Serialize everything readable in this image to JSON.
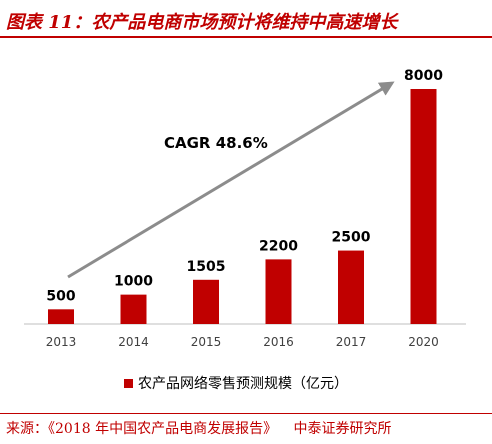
{
  "title": "图表 11：农产品电商市场预计将维持中高速增长",
  "source": {
    "text": "来源：《2018 年中国农产品电商发展报告》",
    "org": "中泰证券研究所"
  },
  "colors": {
    "accent": "#c00000",
    "bar": "#c00000",
    "arrow": "#8c8c8c",
    "axis": "#bfbfbf"
  },
  "chart_data": {
    "type": "bar",
    "categories": [
      "2013",
      "2014",
      "2015",
      "2016",
      "2017",
      "2020"
    ],
    "series": [
      {
        "name": "农产品网络零售预测规模（亿元）",
        "values": [
          500,
          1000,
          1505,
          2200,
          2500,
          8000
        ]
      }
    ],
    "data_labels": [
      "500",
      "1000",
      "1505",
      "2200",
      "2500",
      "8000"
    ],
    "annotation": "CAGR 48.6%",
    "ylim": [
      0,
      8000
    ],
    "grid": false,
    "legend_position": "bottom"
  }
}
